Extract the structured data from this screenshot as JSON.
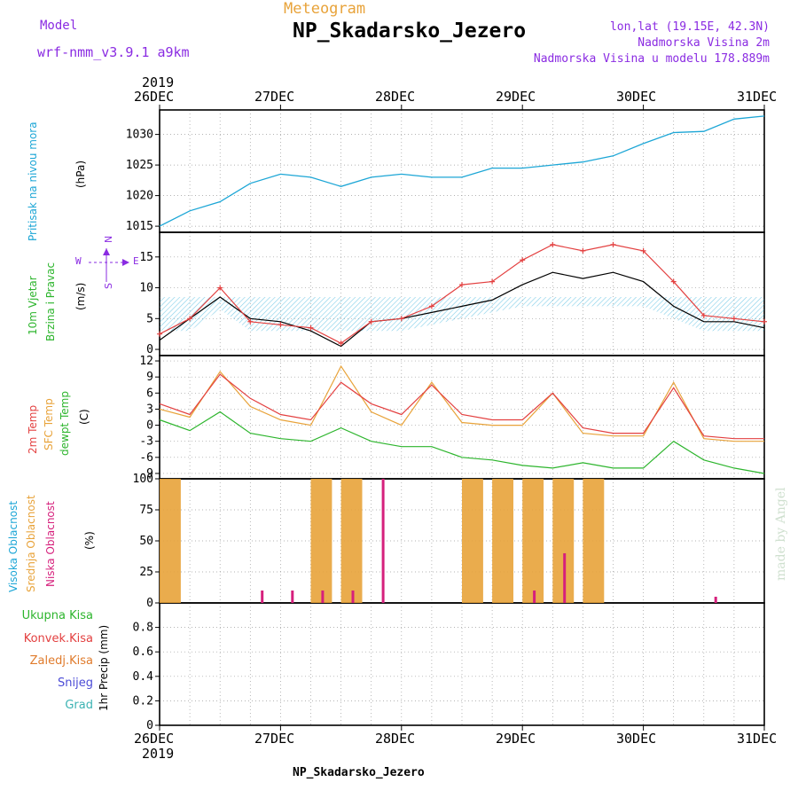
{
  "header": {
    "model_label": "Model",
    "model_value": "wrf-nmm_v3.9.1  a9km",
    "product": "Meteogram",
    "station": "NP_Skadarsko_Jezero",
    "coords": "lon,lat (19.15E, 42.3N)",
    "elevation": "Nadmorska Visina 2m",
    "model_elevation": "Nadmorska Visina u modelu 178.889m"
  },
  "footer": {
    "station": "NP_Skadarsko_Jezero",
    "credit": "made by Angel"
  },
  "time_axis": {
    "year": "2019",
    "labels": [
      "26DEC",
      "27DEC",
      "28DEC",
      "29DEC",
      "30DEC",
      "31DEC"
    ]
  },
  "panels": {
    "pressure": {
      "label": "Pritisak na nivou mora",
      "unit": "(hPa)",
      "ticks": [
        "1015",
        "1020",
        "1025",
        "1030"
      ]
    },
    "wind": {
      "label1": "10m Vjetar",
      "label2": "Brzina i Pravac",
      "unit": "(m/s)",
      "ticks": [
        "0",
        "5",
        "10",
        "15"
      ],
      "compass": {
        "n": "N",
        "s": "S",
        "w": "W",
        "e": "E"
      }
    },
    "temp": {
      "label1": "2m Temp",
      "label2": "SFC Temp",
      "label3": "dewpt Temp",
      "unit": "(C)",
      "ticks": [
        "-9",
        "-6",
        "-3",
        "0",
        "3",
        "6",
        "9",
        "12"
      ]
    },
    "cloud": {
      "label1": "Visoka Oblacnost",
      "label2": "Srednja Oblacnost",
      "label3": "Niska Oblacnost",
      "unit": "(%)",
      "ticks": [
        "0",
        "25",
        "50",
        "75",
        "100"
      ]
    },
    "precip": {
      "legend": [
        "Ukupna Kisa",
        "Konvek.Kisa",
        "Zaledj.Kisa",
        "Snijeg",
        "Grad"
      ],
      "unit": "1hr Precip (mm)",
      "ticks": [
        "0",
        "0.2",
        "0.4",
        "0.6",
        "0.8"
      ]
    }
  },
  "colors": {
    "pressure": "#1ca6d6",
    "gust": "#e34040",
    "wind": "#000000",
    "t2m": "#e34040",
    "sfc": "#e8a33a",
    "dewpt": "#2db52d",
    "high": "#1ca6d6",
    "mid": "#e8a33a",
    "low": "#d6207c"
  },
  "chart_data": [
    {
      "type": "line",
      "xlabel": "",
      "x_hours": [
        0,
        6,
        12,
        18,
        24,
        30,
        36,
        42,
        48,
        54,
        60,
        66,
        72,
        78,
        84,
        90,
        96,
        102,
        108,
        114,
        120
      ],
      "series": [
        {
          "values": [
            1015,
            1017.5,
            1019,
            1022,
            1023.5,
            1023,
            1021.5,
            1023,
            1023.5,
            1023,
            1023,
            1024.5,
            1024.5,
            1025,
            1025.5,
            1026.5,
            1028.5,
            1030.3,
            1030.5,
            1032.5,
            1033
          ]
        }
      ],
      "ylim": [
        1014,
        1034
      ]
    },
    {
      "type": "line",
      "series": [
        {
          "values": [
            2.5,
            5,
            10,
            4.5,
            4,
            3.5,
            1,
            4.5,
            5,
            7,
            10.5,
            11,
            14.5,
            17,
            16,
            17,
            16,
            11,
            5.5,
            5,
            4.5
          ]
        },
        {
          "values": [
            1.5,
            5,
            8.5,
            5,
            4.5,
            3,
            0.5,
            4.5,
            5,
            6,
            7,
            8,
            10.5,
            12.5,
            11.5,
            12.5,
            11,
            7,
            4.5,
            4.5,
            3.5
          ]
        }
      ],
      "ylim": [
        -1,
        19
      ]
    },
    {
      "type": "line",
      "series": [
        {
          "values": [
            4,
            2,
            9.5,
            5,
            2,
            1,
            8,
            4,
            2,
            7.5,
            2,
            1,
            1,
            6,
            -0.5,
            -1.5,
            -1.5,
            7,
            -2,
            -2.5,
            -2.5
          ]
        },
        {
          "values": [
            3,
            1.5,
            10,
            3.5,
            1,
            0,
            11,
            2.5,
            0,
            8,
            0.5,
            0,
            0,
            6,
            -1.5,
            -2,
            -2,
            8,
            -2.5,
            -3,
            -3
          ]
        },
        {
          "values": [
            1,
            -1,
            2.5,
            -1.5,
            -2.5,
            -3,
            -0.5,
            -3,
            -4,
            -4,
            -6,
            -6.5,
            -7.5,
            -8,
            -7,
            -8,
            -8,
            -3,
            -6.5,
            -8,
            -9
          ]
        }
      ],
      "ylim": [
        -10,
        13
      ]
    },
    {
      "type": "bar",
      "series": [
        {
          "values": [
            0,
            0,
            0,
            0,
            0,
            0,
            0,
            0,
            0,
            0,
            0,
            0,
            0,
            0,
            0,
            0,
            0,
            0,
            0,
            0,
            0
          ]
        },
        {
          "values": [
            100,
            0,
            0,
            0,
            0,
            100,
            100,
            0,
            0,
            0,
            100,
            100,
            100,
            100,
            100,
            0,
            0,
            0,
            0,
            0,
            0
          ]
        },
        {
          "values": [
            0,
            0,
            0,
            10,
            10,
            10,
            10,
            100,
            0,
            0,
            0,
            0,
            10,
            40,
            0,
            0,
            0,
            0,
            5,
            0,
            0
          ]
        }
      ],
      "ylim": [
        0,
        100
      ]
    },
    {
      "type": "bar",
      "series": [
        {
          "values": [
            0,
            0,
            0,
            0,
            0,
            0,
            0,
            0,
            0,
            0,
            0,
            0,
            0,
            0,
            0,
            0,
            0,
            0,
            0,
            0,
            0
          ]
        }
      ],
      "ylim": [
        0,
        1
      ]
    }
  ]
}
